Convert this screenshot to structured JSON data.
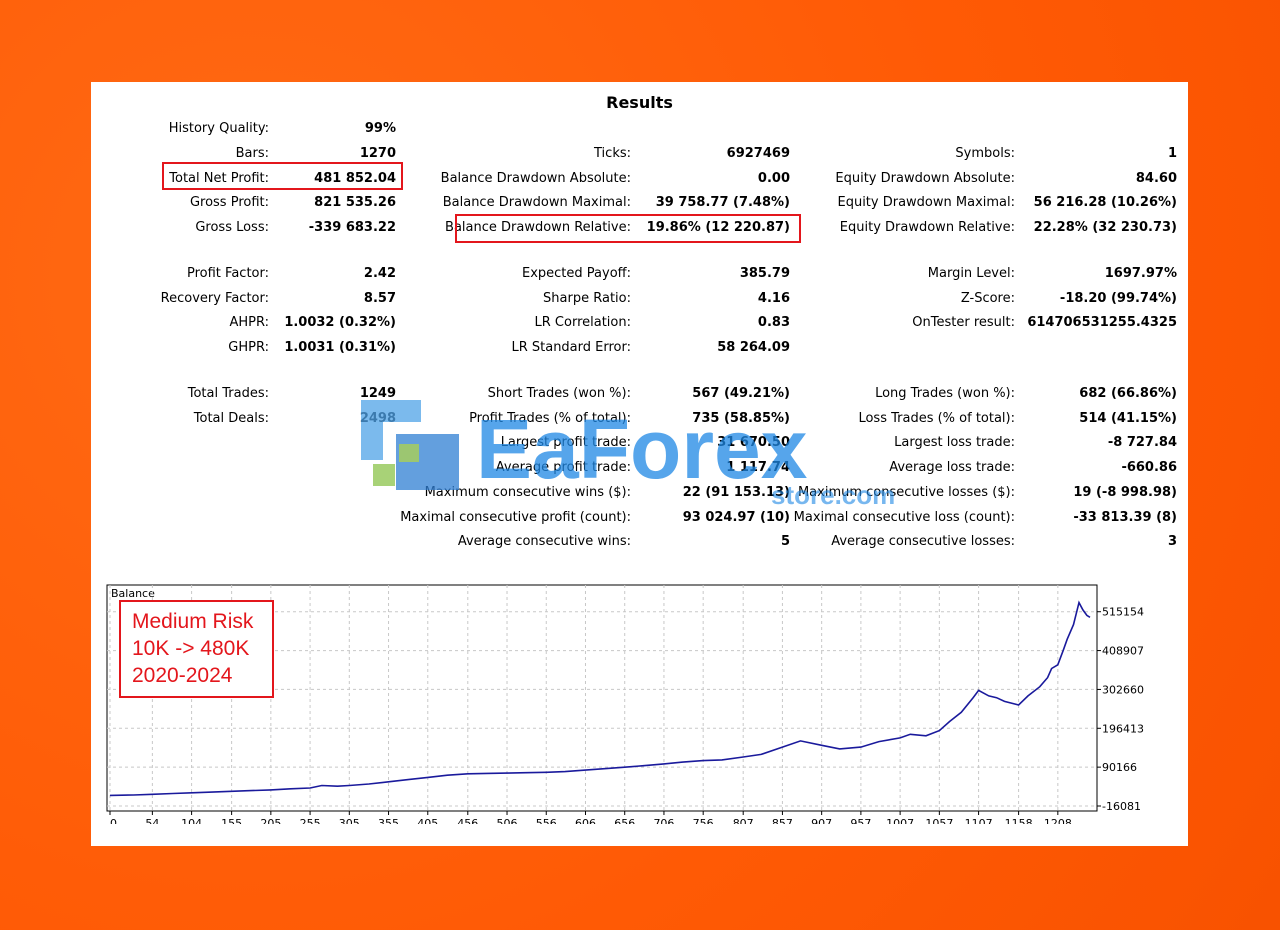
{
  "title": "Results",
  "col1": [
    {
      "label": "History Quality:",
      "value": "99%"
    },
    {
      "label": "Bars:",
      "value": "1270"
    },
    {
      "label": "Total Net Profit:",
      "value": "481 852.04"
    },
    {
      "label": "Gross Profit:",
      "value": "821 535.26"
    },
    {
      "label": "Gross Loss:",
      "value": "-339 683.22"
    },
    {
      "label": "Profit Factor:",
      "value": "2.42"
    },
    {
      "label": "Recovery Factor:",
      "value": "8.57"
    },
    {
      "label": "AHPR:",
      "value": "1.0032 (0.32%)"
    },
    {
      "label": "GHPR:",
      "value": "1.0031 (0.31%)"
    },
    {
      "label": "Total Trades:",
      "value": "1249"
    },
    {
      "label": "Total Deals:",
      "value": "2498"
    }
  ],
  "col2": [
    {
      "label": "Ticks:",
      "value": "6927469"
    },
    {
      "label": "Balance Drawdown Absolute:",
      "value": "0.00"
    },
    {
      "label": "Balance Drawdown Maximal:",
      "value": "39 758.77 (7.48%)"
    },
    {
      "label": "Balance Drawdown Relative:",
      "value": "19.86% (12 220.87)"
    },
    {
      "label": "Expected Payoff:",
      "value": "385.79"
    },
    {
      "label": "Sharpe Ratio:",
      "value": "4.16"
    },
    {
      "label": "LR Correlation:",
      "value": "0.83"
    },
    {
      "label": "LR Standard Error:",
      "value": "58 264.09"
    },
    {
      "label": "Short Trades (won %):",
      "value": "567 (49.21%)"
    },
    {
      "label": "Profit Trades (% of total):",
      "value": "735 (58.85%)"
    },
    {
      "label": "Largest profit trade:",
      "value": "31 670.50"
    },
    {
      "label": "Average profit trade:",
      "value": "1 117.74"
    },
    {
      "label": "Maximum consecutive wins ($):",
      "value": "22 (91 153.13)"
    },
    {
      "label": "Maximal consecutive profit (count):",
      "value": "93 024.97 (10)"
    },
    {
      "label": "Average consecutive wins:",
      "value": "5"
    }
  ],
  "col3": [
    {
      "label": "Symbols:",
      "value": "1"
    },
    {
      "label": "Equity Drawdown Absolute:",
      "value": "84.60"
    },
    {
      "label": "Equity Drawdown Maximal:",
      "value": "56 216.28 (10.26%)"
    },
    {
      "label": "Equity Drawdown Relative:",
      "value": "22.28% (32 230.73)"
    },
    {
      "label": "Margin Level:",
      "value": "1697.97%"
    },
    {
      "label": "Z-Score:",
      "value": "-18.20 (99.74%)"
    },
    {
      "label": "OnTester result:",
      "value": "614706531255.4325"
    },
    {
      "label": "Long Trades (won %):",
      "value": "682 (66.86%)"
    },
    {
      "label": "Loss Trades (% of total):",
      "value": "514 (41.15%)"
    },
    {
      "label": "Largest loss trade:",
      "value": "-8 727.84"
    },
    {
      "label": "Average loss trade:",
      "value": "-660.86"
    },
    {
      "label": "Maximum consecutive losses ($):",
      "value": "19 (-8 998.98)"
    },
    {
      "label": "Maximal consecutive loss (count):",
      "value": "-33 813.39 (8)"
    },
    {
      "label": "Average consecutive losses:",
      "value": "3"
    }
  ],
  "risk_note": {
    "line1": "Medium Risk",
    "line2": "10K -> 480K",
    "line3": "2020-2024"
  },
  "watermark": {
    "word1": "EaForex",
    "word2": "store.com"
  },
  "colors": {
    "background": "#ff5f0a",
    "highlight": "#e3161c",
    "line": "#1a1a9c",
    "watermark": "#1e88e5"
  },
  "chart_data": {
    "type": "line",
    "title": "Balance",
    "x_ticks": [
      "0",
      "54",
      "104",
      "155",
      "205",
      "255",
      "305",
      "355",
      "405",
      "456",
      "506",
      "556",
      "606",
      "656",
      "706",
      "756",
      "807",
      "857",
      "907",
      "957",
      "1007",
      "1057",
      "1107",
      "1158",
      "1208"
    ],
    "y_ticks": [
      "515154",
      "408907",
      "302660",
      "196413",
      "90166",
      "-16081"
    ],
    "ylim": [
      -16081,
      580000
    ],
    "xlim": [
      0,
      1249
    ],
    "series": [
      {
        "values_x": [
          0,
          30,
          54,
          80,
          104,
          130,
          155,
          180,
          205,
          230,
          255,
          270,
          290,
          305,
          330,
          355,
          380,
          405,
          430,
          456,
          480,
          506,
          530,
          556,
          580,
          606,
          630,
          656,
          680,
          706,
          730,
          756,
          780,
          807,
          830,
          857,
          880,
          907,
          930,
          957,
          980,
          1007,
          1020,
          1040,
          1057,
          1070,
          1085,
          1100,
          1107,
          1120,
          1130,
          1140,
          1158,
          1170,
          1185,
          1195,
          1200,
          1208,
          1215,
          1220,
          1228,
          1235,
          1240,
          1245,
          1249
        ],
        "values_y": [
          13000,
          14000,
          16000,
          18000,
          20000,
          22000,
          24000,
          26000,
          28000,
          31000,
          33000,
          40000,
          38000,
          40000,
          44000,
          50000,
          56000,
          62000,
          68000,
          72000,
          73000,
          74000,
          75000,
          76000,
          78000,
          82000,
          86000,
          90000,
          94000,
          99000,
          104000,
          108000,
          110000,
          118000,
          125000,
          145000,
          162000,
          150000,
          140000,
          145000,
          160000,
          170000,
          180000,
          176000,
          190000,
          215000,
          240000,
          280000,
          300000,
          285000,
          280000,
          270000,
          260000,
          285000,
          310000,
          335000,
          360000,
          370000,
          410000,
          440000,
          480000,
          540000,
          520000,
          505000,
          500000
        ]
      }
    ]
  }
}
